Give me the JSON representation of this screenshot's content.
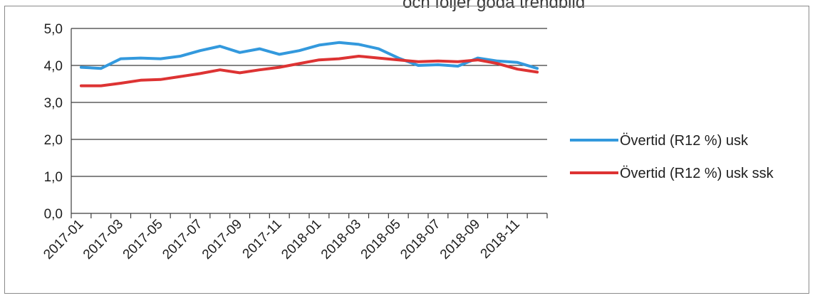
{
  "header": {
    "partial_text": "och följer goda trendbild"
  },
  "chart_data": {
    "type": "line",
    "title": "",
    "xlabel": "",
    "ylabel": "",
    "ylim": [
      0,
      5
    ],
    "yticks": [
      "0,0",
      "1,0",
      "2,0",
      "3,0",
      "4,0",
      "5,0"
    ],
    "grid": "horizontal",
    "legend_position": "right",
    "x": [
      "2017-01",
      "2017-02",
      "2017-03",
      "2017-04",
      "2017-05",
      "2017-06",
      "2017-07",
      "2017-08",
      "2017-09",
      "2017-10",
      "2017-11",
      "2017-12",
      "2018-01",
      "2018-02",
      "2018-03",
      "2018-04",
      "2018-05",
      "2018-06",
      "2018-07",
      "2018-08",
      "2018-09",
      "2018-10",
      "2018-11",
      "2018-12"
    ],
    "xtick_labels": [
      "2017-01",
      "2017-03",
      "2017-05",
      "2017-07",
      "2017-09",
      "2017-11",
      "2018-01",
      "2018-03",
      "2018-05",
      "2018-07",
      "2018-09",
      "2018-11"
    ],
    "series": [
      {
        "name": "Övertid (R12 %) usk",
        "color": "#3399dd",
        "values": [
          3.95,
          3.92,
          4.18,
          4.2,
          4.18,
          4.25,
          4.4,
          4.52,
          4.35,
          4.45,
          4.3,
          4.4,
          4.55,
          4.62,
          4.57,
          4.45,
          4.2,
          4.0,
          4.02,
          3.98,
          4.2,
          4.12,
          4.08,
          3.92
        ]
      },
      {
        "name": "Övertid (R12 %) usk ssk",
        "color": "#dd3333",
        "values": [
          3.45,
          3.45,
          3.52,
          3.6,
          3.62,
          3.7,
          3.78,
          3.88,
          3.8,
          3.88,
          3.95,
          4.05,
          4.15,
          4.18,
          4.25,
          4.2,
          4.15,
          4.1,
          4.12,
          4.1,
          4.15,
          4.05,
          3.9,
          3.82
        ]
      }
    ]
  }
}
